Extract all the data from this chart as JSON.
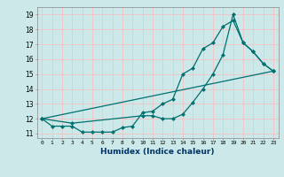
{
  "xlabel": "Humidex (Indice chaleur)",
  "bg_color": "#cce8e8",
  "grid_color": "#f0c8c8",
  "line_color": "#007070",
  "line1_x": [
    0,
    1,
    2,
    3,
    4,
    5,
    6,
    7,
    8,
    9,
    10,
    11,
    12,
    13,
    14,
    15,
    16,
    17,
    18,
    19,
    20,
    21,
    22,
    23
  ],
  "line1_y": [
    12,
    11.5,
    11.5,
    11.5,
    11.1,
    11.1,
    11.1,
    11.1,
    11.4,
    11.5,
    12.4,
    12.5,
    13.0,
    13.3,
    15.0,
    15.4,
    16.7,
    17.1,
    18.2,
    18.6,
    17.1,
    16.5,
    15.7,
    15.2
  ],
  "line2_x": [
    0,
    3,
    10,
    11,
    12,
    13,
    14,
    15,
    16,
    17,
    18,
    19,
    20,
    21,
    22,
    23
  ],
  "line2_y": [
    12,
    11.7,
    12.2,
    12.2,
    12.0,
    12.0,
    12.3,
    13.1,
    14.0,
    15.0,
    16.3,
    19.0,
    17.1,
    16.5,
    15.7,
    15.2
  ],
  "line3_x": [
    0,
    23
  ],
  "line3_y": [
    12,
    15.2
  ],
  "xlim": [
    -0.5,
    23.5
  ],
  "ylim": [
    10.7,
    19.5
  ],
  "yticks": [
    11,
    12,
    13,
    14,
    15,
    16,
    17,
    18,
    19
  ],
  "xticks": [
    0,
    1,
    2,
    3,
    4,
    5,
    6,
    7,
    8,
    9,
    10,
    11,
    12,
    13,
    14,
    15,
    16,
    17,
    18,
    19,
    20,
    21,
    22,
    23
  ]
}
